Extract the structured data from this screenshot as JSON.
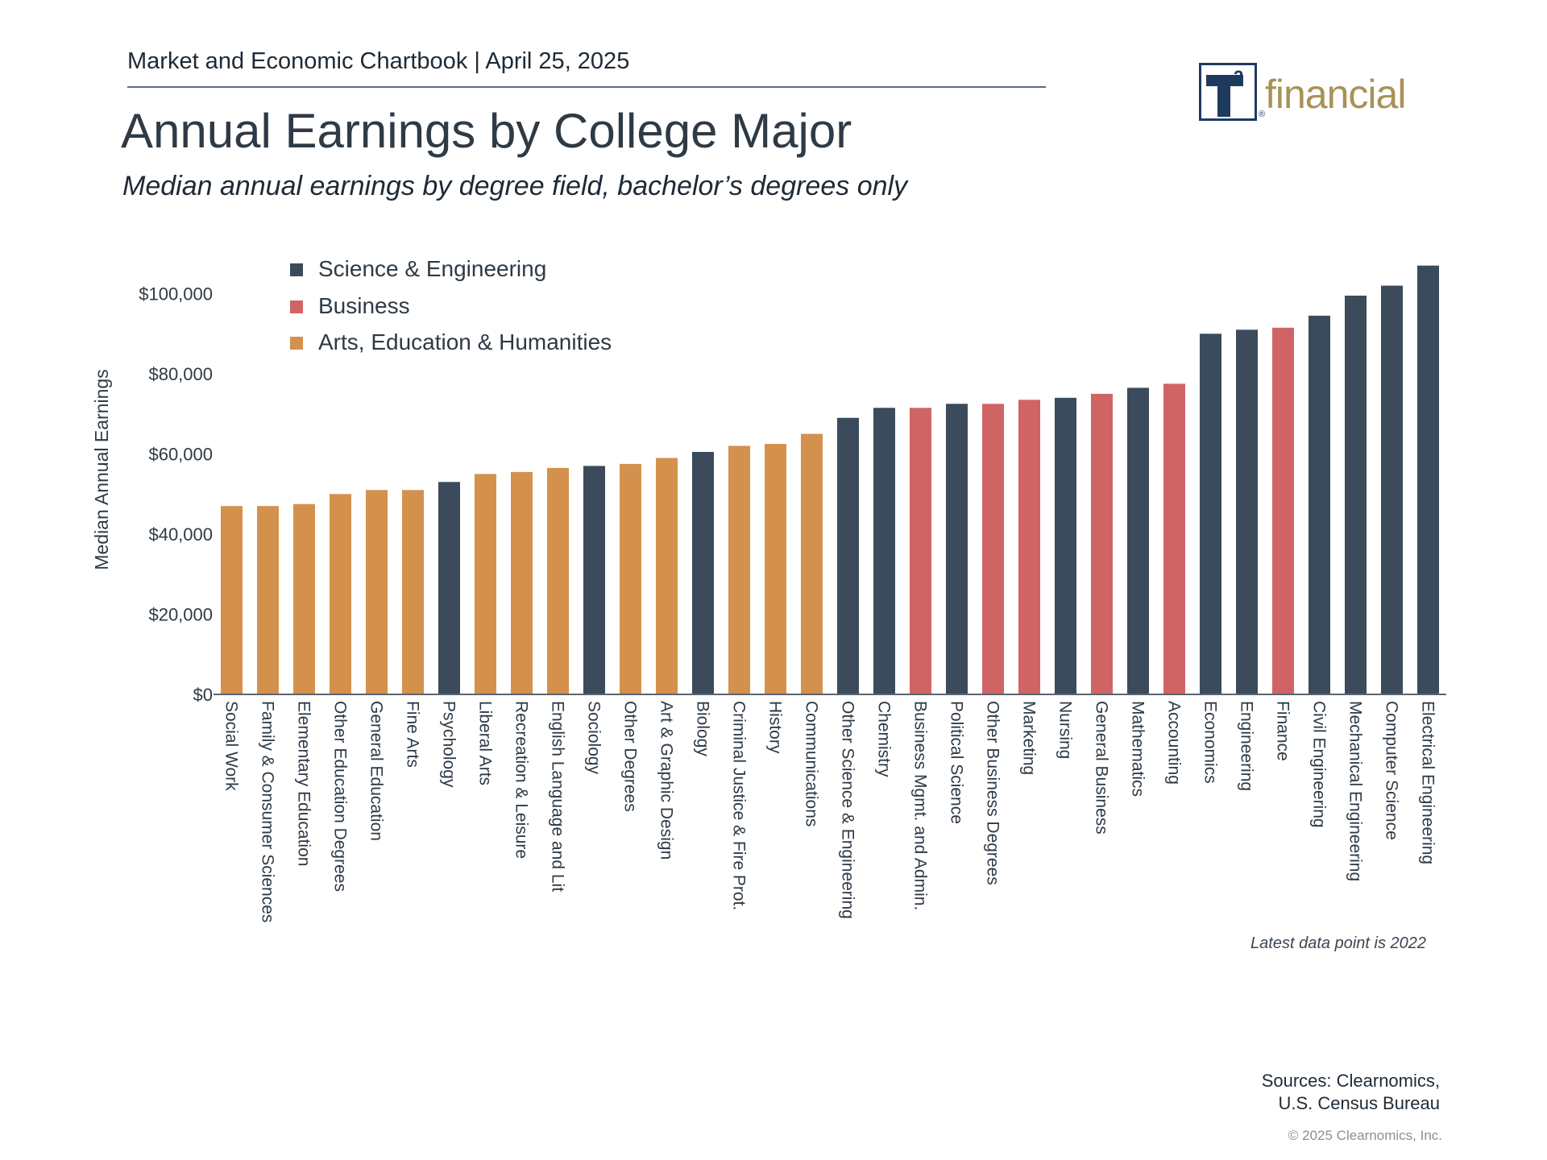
{
  "header": {
    "chartbook": "Market and Economic Chartbook | April 25, 2025",
    "title": "Annual Earnings by College Major",
    "subtitle": "Median annual earnings by degree field, bachelor’s degrees only"
  },
  "logo": {
    "mark": "T",
    "superscript": "2",
    "registered": "®",
    "word": "financial"
  },
  "colors": {
    "science": "#3b4b5b",
    "business": "#d06465",
    "arts": "#d4914d",
    "axis": "#5a6570",
    "text": "#2e3a45"
  },
  "chart_data": {
    "type": "bar",
    "title": "Annual Earnings by College Major",
    "xlabel": "",
    "ylabel": "Median Annual Earnings",
    "ylim": [
      0,
      110000
    ],
    "yticks": [
      0,
      20000,
      40000,
      60000,
      80000,
      100000
    ],
    "ytick_labels": [
      "$0",
      "$20,000",
      "$40,000",
      "$60,000",
      "$80,000",
      "$100,000"
    ],
    "legend": [
      {
        "key": "science",
        "label": "Science & Engineering"
      },
      {
        "key": "business",
        "label": "Business"
      },
      {
        "key": "arts",
        "label": "Arts, Education & Humanities"
      }
    ],
    "legend_position": "top-left",
    "categories": [
      "Social Work",
      "Family & Consumer Sciences",
      "Elementary Education",
      "Other Education Degrees",
      "General Education",
      "Fine Arts",
      "Psychology",
      "Liberal Arts",
      "Recreation & Leisure",
      "English Language and Lit",
      "Sociology",
      "Other Degrees",
      "Art & Graphic Design",
      "Biology",
      "Criminal Justice & Fire Prot.",
      "History",
      "Communications",
      "Other Science & Engineering",
      "Chemistry",
      "Business Mgmt. and Admin.",
      "Political Science",
      "Other Business Degrees",
      "Marketing",
      "Nursing",
      "General Business",
      "Mathematics",
      "Accounting",
      "Economics",
      "Engineering",
      "Finance",
      "Civil Engineering",
      "Mechanical Engineering",
      "Computer Science",
      "Electrical Engineering"
    ],
    "groups": [
      "arts",
      "arts",
      "arts",
      "arts",
      "arts",
      "arts",
      "science",
      "arts",
      "arts",
      "arts",
      "science",
      "arts",
      "arts",
      "science",
      "arts",
      "arts",
      "arts",
      "science",
      "science",
      "business",
      "science",
      "business",
      "business",
      "science",
      "business",
      "science",
      "business",
      "science",
      "science",
      "business",
      "science",
      "science",
      "science",
      "science"
    ],
    "values": [
      47000,
      47000,
      47500,
      50000,
      51000,
      51000,
      53000,
      55000,
      55500,
      56500,
      57000,
      57500,
      59000,
      60500,
      62000,
      62500,
      65000,
      69000,
      71500,
      71500,
      72500,
      72500,
      73500,
      74000,
      75000,
      76500,
      77500,
      90000,
      91000,
      91500,
      94500,
      99500,
      102000,
      107000
    ]
  },
  "footer": {
    "note": "Latest data point is 2022",
    "sources_line1": "Sources: Clearnomics,",
    "sources_line2": "U.S. Census Bureau",
    "copyright": "© 2025 Clearnomics, Inc."
  }
}
